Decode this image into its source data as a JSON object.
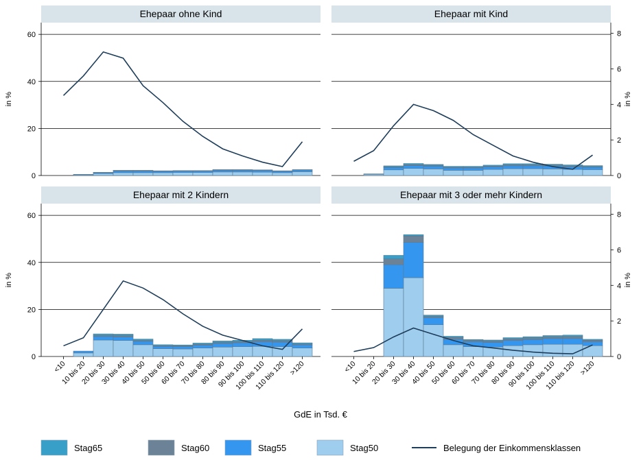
{
  "figure": {
    "xlabel": "GdE in Tsd. €",
    "ylabel_left": "in %",
    "ylabel_right": "in %"
  },
  "legend": [
    {
      "key": "s65",
      "label": "Stag65",
      "color": "#38a0c8",
      "kind": "box"
    },
    {
      "key": "s60",
      "label": "Stag60",
      "color": "#6c8296",
      "kind": "box"
    },
    {
      "key": "s55",
      "label": "Stag55",
      "color": "#3596f0",
      "kind": "box"
    },
    {
      "key": "s50",
      "label": "Stag50",
      "color": "#9fcdee",
      "kind": "box"
    },
    {
      "key": "line",
      "label": "Belegung der Einkommensklassen",
      "color": "#1e3d5a",
      "kind": "line"
    }
  ],
  "chart_data": [
    {
      "type": "bar",
      "title": "Ehepaar ohne Kind",
      "stacked": true,
      "categories": [
        "<10",
        "10 bis 20",
        "20 bis 30",
        "30 bis 40",
        "40 bis 50",
        "50 bis 60",
        "60 bis 70",
        "70 bis 80",
        "80 bis 90",
        "90 bis 100",
        "100 bis 110",
        "110 bis 120",
        ">120"
      ],
      "ylim_left": [
        0,
        65
      ],
      "yticks_left": [
        0,
        20,
        40,
        60
      ],
      "ylim_right": [
        0,
        8.6
      ],
      "yticks_right": [
        0,
        2,
        4,
        6,
        8
      ],
      "series": [
        {
          "name": "Stag50",
          "values": [
            0,
            0.3,
            0.8,
            1.2,
            1.2,
            1.2,
            1.3,
            1.3,
            1.5,
            1.5,
            1.4,
            1.2,
            1.6
          ]
        },
        {
          "name": "Stag55",
          "values": [
            0,
            0.2,
            0.4,
            0.7,
            0.7,
            0.6,
            0.6,
            0.6,
            0.7,
            0.7,
            0.7,
            0.6,
            0.7
          ]
        },
        {
          "name": "Stag60",
          "values": [
            0,
            0,
            0.1,
            0.2,
            0.2,
            0.1,
            0.1,
            0.1,
            0.2,
            0.2,
            0.2,
            0.1,
            0.1
          ]
        },
        {
          "name": "Stag65",
          "values": [
            0,
            0,
            0.05,
            0.1,
            0.1,
            0.1,
            0.1,
            0.1,
            0.1,
            0.1,
            0.1,
            0.1,
            0.1
          ]
        }
      ],
      "line": {
        "name": "Belegung der Einkommensklassen",
        "axis": "right",
        "values": [
          4.5,
          5.6,
          6.95,
          6.6,
          5.05,
          4.1,
          3.05,
          2.2,
          1.5,
          1.1,
          0.75,
          0.5,
          1.9
        ]
      }
    },
    {
      "type": "bar",
      "title": "Ehepaar mit Kind",
      "stacked": true,
      "categories": [
        "<10",
        "10 bis 20",
        "20 bis 30",
        "30 bis 40",
        "40 bis 50",
        "50 bis 60",
        "60 bis 70",
        "70 bis 80",
        "80 bis 90",
        "90 bis 100",
        "100 bis 110",
        "110 bis 120",
        ">120"
      ],
      "ylim_left": [
        0,
        65
      ],
      "yticks_left": [
        0,
        20,
        40,
        60
      ],
      "ylim_right": [
        0,
        8.6
      ],
      "yticks_right": [
        0,
        2,
        4,
        6,
        8
      ],
      "series": [
        {
          "name": "Stag50",
          "values": [
            0,
            0.5,
            2.4,
            3.0,
            2.8,
            2.2,
            2.2,
            2.6,
            2.9,
            2.9,
            2.8,
            2.6,
            2.5
          ]
        },
        {
          "name": "Stag55",
          "values": [
            0,
            0.2,
            1.0,
            1.2,
            1.1,
            1.0,
            1.0,
            1.1,
            1.2,
            1.2,
            1.2,
            1.1,
            1.0
          ]
        },
        {
          "name": "Stag60",
          "values": [
            0,
            0,
            0.3,
            0.4,
            0.4,
            0.3,
            0.3,
            0.3,
            0.4,
            0.4,
            0.4,
            0.4,
            0.3
          ]
        },
        {
          "name": "Stag65",
          "values": [
            0,
            0,
            0.4,
            0.5,
            0.4,
            0.4,
            0.4,
            0.4,
            0.5,
            0.5,
            0.4,
            0.4,
            0.4
          ]
        }
      ],
      "line": {
        "name": "Belegung der Einkommensklassen",
        "axis": "right",
        "values": [
          0.8,
          1.4,
          2.8,
          4.0,
          3.65,
          3.1,
          2.3,
          1.7,
          1.1,
          0.75,
          0.5,
          0.35,
          1.15
        ]
      }
    },
    {
      "type": "bar",
      "title": "Ehepaar mit 2 Kindern",
      "stacked": true,
      "categories": [
        "<10",
        "10 bis 20",
        "20 bis 30",
        "30 bis 40",
        "40 bis 50",
        "50 bis 60",
        "60 bis 70",
        "70 bis 80",
        "80 bis 90",
        "90 bis 100",
        "100 bis 110",
        "110 bis 120",
        ">120"
      ],
      "ylim_left": [
        0,
        65
      ],
      "yticks_left": [
        0,
        20,
        40,
        60
      ],
      "ylim_right": [
        0,
        8.6
      ],
      "yticks_right": [
        0,
        2,
        4,
        6,
        8
      ],
      "series": [
        {
          "name": "Stag50",
          "values": [
            0,
            1.5,
            7.0,
            6.8,
            5.0,
            3.3,
            3.2,
            3.6,
            4.0,
            4.2,
            4.3,
            4.2,
            3.6
          ]
        },
        {
          "name": "Stag55",
          "values": [
            0,
            0.8,
            1.5,
            1.5,
            1.4,
            1.0,
            1.0,
            1.2,
            1.5,
            1.6,
            1.9,
            1.9,
            1.3
          ]
        },
        {
          "name": "Stag60",
          "values": [
            0,
            0,
            0.5,
            0.6,
            0.4,
            0.3,
            0.3,
            0.4,
            0.5,
            0.5,
            0.7,
            0.6,
            0.4
          ]
        },
        {
          "name": "Stag65",
          "values": [
            0,
            0,
            0.6,
            0.6,
            0.6,
            0.4,
            0.4,
            0.5,
            0.6,
            0.6,
            0.7,
            0.6,
            0.5
          ]
        }
      ],
      "line": {
        "name": "Belegung der Einkommensklassen",
        "axis": "right",
        "values": [
          0.6,
          1.05,
          2.65,
          4.25,
          3.85,
          3.2,
          2.4,
          1.7,
          1.2,
          0.9,
          0.6,
          0.4,
          1.55
        ]
      }
    },
    {
      "type": "bar",
      "title": "Ehepaar mit 3 oder mehr Kindern",
      "stacked": true,
      "categories": [
        "<10",
        "10 bis 20",
        "20 bis 30",
        "30 bis 40",
        "40 bis 50",
        "50 bis 60",
        "60 bis 70",
        "70 bis 80",
        "80 bis 90",
        "90 bis 100",
        "100 bis 110",
        "110 bis 120",
        ">120"
      ],
      "ylim_left": [
        0,
        65
      ],
      "yticks_left": [
        0,
        20,
        40,
        60
      ],
      "ylim_right": [
        0,
        8.6
      ],
      "yticks_right": [
        0,
        2,
        4,
        6,
        8
      ],
      "series": [
        {
          "name": "Stag50",
          "values": [
            0,
            0,
            29.0,
            33.5,
            13.5,
            5.0,
            4.2,
            4.0,
            4.6,
            5.0,
            5.2,
            5.2,
            4.6
          ]
        },
        {
          "name": "Stag55",
          "values": [
            0,
            0,
            10.0,
            15.0,
            3.0,
            2.3,
            2.0,
            2.0,
            2.2,
            2.2,
            2.4,
            2.4,
            1.6
          ]
        },
        {
          "name": "Stag60",
          "values": [
            0,
            0,
            2.5,
            2.7,
            0.6,
            0.8,
            0.6,
            0.6,
            0.7,
            0.7,
            0.8,
            0.9,
            0.7
          ]
        },
        {
          "name": "Stag65",
          "values": [
            0,
            0,
            1.5,
            0.6,
            0.5,
            0.5,
            0.4,
            0.4,
            0.5,
            0.5,
            0.5,
            0.6,
            0.4
          ]
        }
      ],
      "line": {
        "name": "Belegung der Einkommensklassen",
        "axis": "right",
        "values": [
          0.28,
          0.5,
          1.1,
          1.6,
          1.25,
          0.9,
          0.6,
          0.48,
          0.35,
          0.25,
          0.18,
          0.15,
          0.65
        ]
      }
    }
  ]
}
